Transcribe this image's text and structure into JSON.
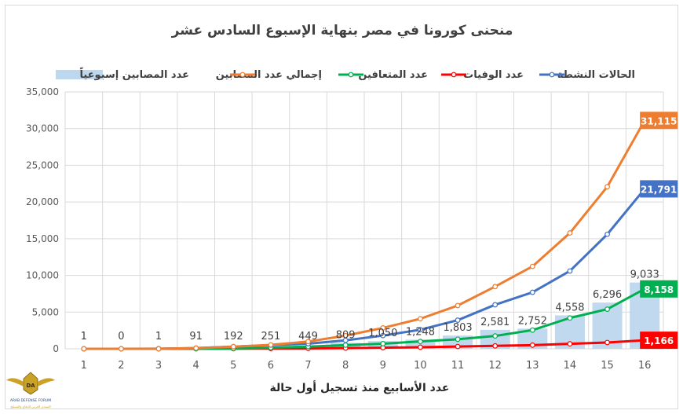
{
  "chart_data": {
    "type": "line",
    "title": "منحنى كورونا في مصر بنهاية الإسبوع السادس عشر",
    "xlabel": "عدد الأسابيع منذ تسجيل أول حالة",
    "ylabel": "",
    "categories": [
      "1",
      "2",
      "3",
      "4",
      "5",
      "6",
      "7",
      "8",
      "9",
      "10",
      "11",
      "12",
      "13",
      "14",
      "15",
      "16"
    ],
    "ylim": [
      0,
      35000
    ],
    "yticks": [
      "0",
      "5,000",
      "10,000",
      "15,000",
      "20,000",
      "25,000",
      "30,000",
      "35,000"
    ],
    "grid": true,
    "legend_position": "top",
    "bars": {
      "name": "عدد المصابين إسبوعياً",
      "color": "#bdd7ee",
      "values": [
        1,
        0,
        1,
        91,
        192,
        251,
        449,
        809,
        1050,
        1248,
        1803,
        2581,
        2752,
        4558,
        6296,
        9033
      ],
      "labels": [
        "1",
        "0",
        "1",
        "91",
        "192",
        "251",
        "449",
        "809",
        "1,050",
        "1,248",
        "1,803",
        "2,581",
        "2,752",
        "4,558",
        "6,296",
        "9,033"
      ]
    },
    "series": [
      {
        "name": "عدد الوفيات",
        "color": "#ff0000",
        "values": [
          0,
          0,
          2,
          6,
          20,
          40,
          60,
          100,
          150,
          220,
          310,
          400,
          500,
          680,
          860,
          1166
        ],
        "end_label": "1,166"
      },
      {
        "name": "عدد المتعافين",
        "color": "#00b050",
        "values": [
          0,
          0,
          0,
          20,
          50,
          150,
          300,
          500,
          700,
          1000,
          1300,
          1750,
          2550,
          4200,
          5400,
          8158
        ],
        "end_label": "8,158"
      },
      {
        "name": "الحالات النشطة",
        "color": "#4472c4",
        "values": [
          1,
          0,
          20,
          100,
          300,
          500,
          700,
          1150,
          1800,
          2600,
          3900,
          6000,
          7700,
          10600,
          15600,
          21791
        ],
        "end_label": "21,791"
      },
      {
        "name": "إجمالي عدد المصابين",
        "color": "#ed7d31",
        "values": [
          1,
          1,
          2,
          93,
          285,
          536,
          985,
          1794,
          2844,
          4092,
          5895,
          8476,
          11228,
          15786,
          22082,
          31115
        ],
        "end_label": "31,115"
      }
    ]
  },
  "logo": {
    "initials": "DA",
    "name": "ARAB DEFENSE FORUM",
    "tagline": "المنتدى العربي للدفاع والتسليح"
  }
}
